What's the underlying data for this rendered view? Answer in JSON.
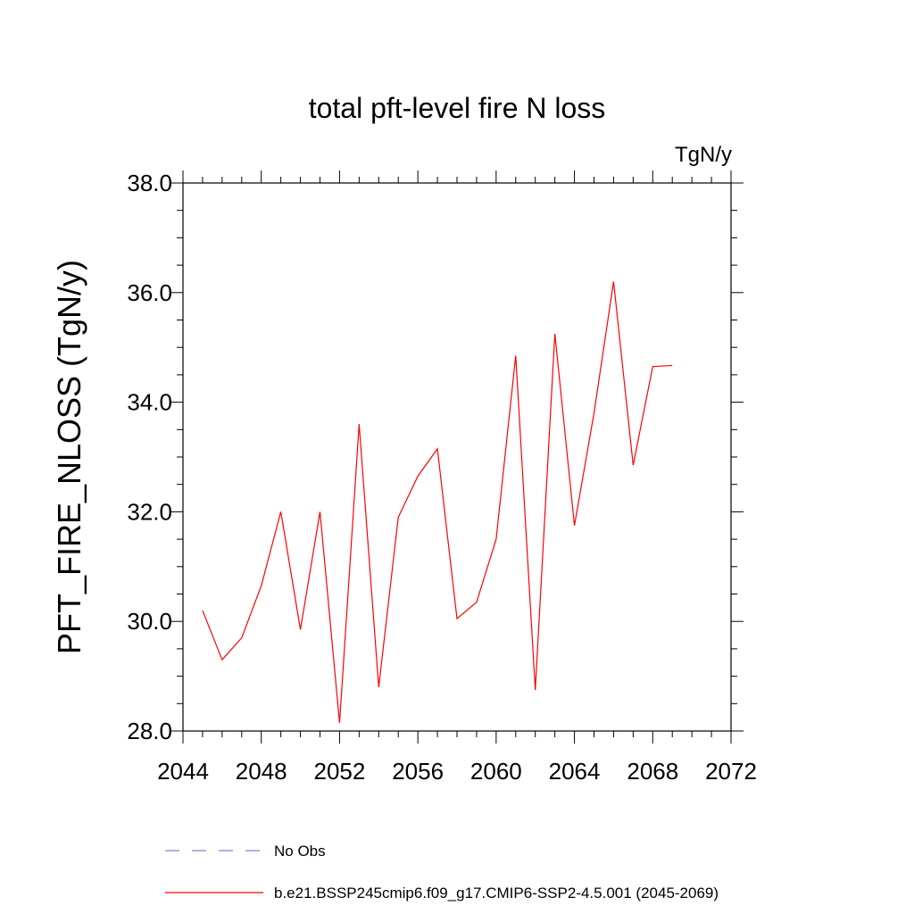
{
  "chart_data": {
    "type": "line",
    "title": "total pft-level fire N loss",
    "units_label": "TgN/y",
    "xlabel": "",
    "ylabel": "PFT_FIRE_NLOSS  (TgN/y)",
    "xlim": [
      2044,
      2072
    ],
    "ylim": [
      28.0,
      38.0
    ],
    "x_ticks": [
      2044,
      2048,
      2052,
      2056,
      2060,
      2064,
      2068,
      2072
    ],
    "x_tick_labels": [
      "2044",
      "2048",
      "2052",
      "2056",
      "2060",
      "2064",
      "2068",
      "2072"
    ],
    "x_minor_step": 1,
    "y_ticks": [
      28.0,
      30.0,
      32.0,
      34.0,
      36.0,
      38.0
    ],
    "y_tick_labels": [
      "28.0",
      "30.0",
      "32.0",
      "34.0",
      "36.0",
      "38.0"
    ],
    "y_minor_step": 0.5,
    "grid": false,
    "series": [
      {
        "name": "No Obs",
        "style": "dashed",
        "color": "#8080d0",
        "x": [],
        "values": []
      },
      {
        "name": "b.e21.BSSP245cmip6.f09_g17.CMIP6-SSP2-4.5.001 (2045-2069)",
        "style": "solid",
        "color": "#ff0000",
        "x": [
          2045,
          2046,
          2047,
          2048,
          2049,
          2050,
          2051,
          2052,
          2053,
          2054,
          2055,
          2056,
          2057,
          2058,
          2059,
          2060,
          2061,
          2062,
          2063,
          2064,
          2065,
          2066,
          2067,
          2068,
          2069
        ],
        "values": [
          30.2,
          29.3,
          29.7,
          30.65,
          32.0,
          29.85,
          32.0,
          28.15,
          33.6,
          28.8,
          31.9,
          32.65,
          33.15,
          30.05,
          30.35,
          31.5,
          34.85,
          28.75,
          35.25,
          31.75,
          33.8,
          36.2,
          32.85,
          34.65,
          34.67
        ]
      }
    ]
  }
}
